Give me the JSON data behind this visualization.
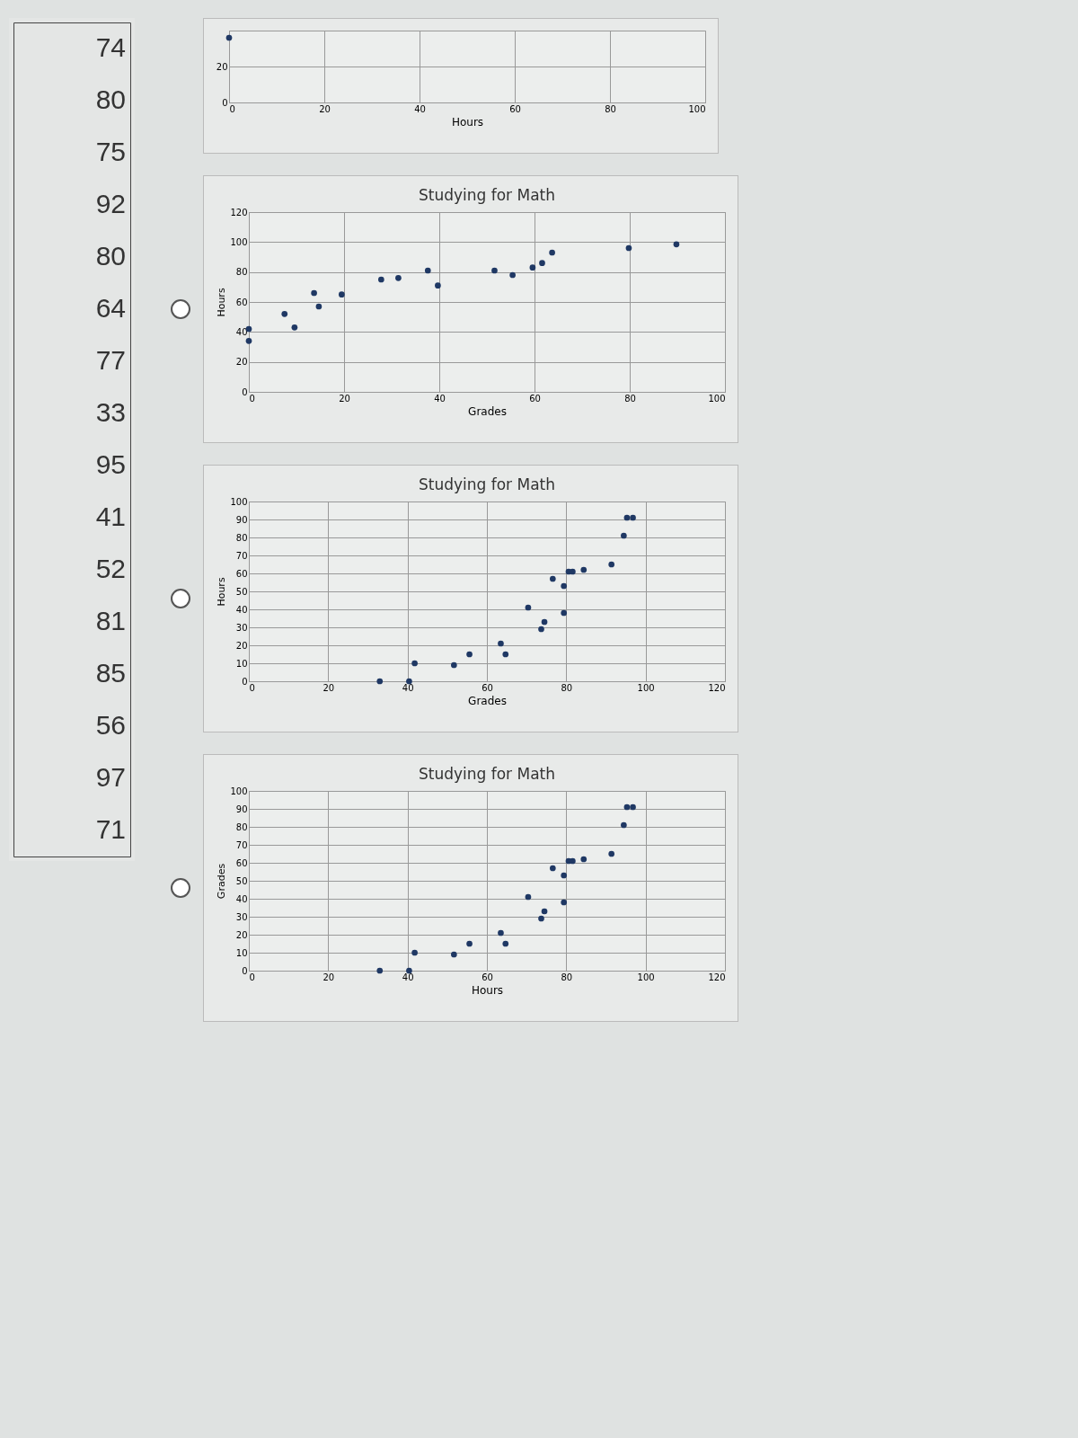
{
  "chart_data": [
    {
      "type": "other",
      "annotations": [
        "74",
        "80",
        "75",
        "92",
        "80",
        "64",
        "77",
        "33",
        "95",
        "41",
        "52",
        "81",
        "85",
        "56",
        "97",
        "71"
      ]
    },
    {
      "type": "scatter",
      "xlabel": "Hours",
      "x": [
        0
      ],
      "values": [
        36
      ],
      "color": "#1f3864",
      "marker": "circle",
      "xlim": [
        0,
        100
      ],
      "xticks": [
        0,
        20,
        40,
        60,
        80,
        100
      ],
      "ylim": [
        0,
        40
      ],
      "yticks": [
        0,
        20
      ],
      "grid": true
    },
    {
      "type": "scatter",
      "title": "Studying for Math",
      "xlabel": "Grades",
      "ylabel": "Hours",
      "x": [
        0,
        0,
        7.5,
        9.6,
        13.7,
        14.7,
        19.5,
        27.8,
        31.4,
        37.6,
        39.7,
        51.6,
        55.4,
        59.6,
        61.6,
        63.7,
        79.8,
        89.8
      ],
      "values": [
        42,
        34,
        52,
        43,
        66,
        57,
        65,
        75,
        76,
        81,
        71,
        81,
        78,
        83,
        86,
        93,
        96,
        98.5
      ],
      "color": "#1f3864",
      "marker": "circle",
      "xlim": [
        0,
        100
      ],
      "xticks": [
        0,
        20,
        40,
        60,
        80,
        100
      ],
      "ylim": [
        0,
        120
      ],
      "yticks": [
        0,
        20,
        40,
        60,
        80,
        100,
        120
      ],
      "grid": true
    },
    {
      "type": "scatter",
      "title": "Studying for Math",
      "xlabel": "Grades",
      "ylabel": "Hours",
      "x": [
        33,
        40.4,
        41.8,
        51.7,
        55.6,
        63.5,
        64.7,
        70.4,
        73.7,
        74.5,
        76.6,
        79.4,
        79.4,
        80.6,
        81.6,
        84.4,
        91.4,
        94.5,
        95.3,
        96.8
      ],
      "values": [
        0,
        0,
        10,
        9,
        15,
        21,
        15,
        41,
        29,
        33,
        57,
        53,
        38,
        61,
        61,
        62,
        65,
        81,
        91,
        91
      ],
      "color": "#1f3864",
      "marker": "circle",
      "xlim": [
        0,
        120
      ],
      "xticks": [
        0,
        20,
        40,
        60,
        80,
        100,
        120
      ],
      "ylim": [
        0,
        100
      ],
      "yticks": [
        0,
        10,
        20,
        30,
        40,
        50,
        60,
        70,
        80,
        90,
        100
      ],
      "grid": true
    },
    {
      "type": "scatter",
      "title": "Studying for Math",
      "xlabel": "Hours",
      "ylabel": "Grades",
      "x": [
        33,
        40.4,
        41.8,
        51.7,
        55.6,
        63.5,
        64.7,
        70.4,
        73.7,
        74.5,
        76.6,
        79.4,
        79.4,
        80.6,
        81.6,
        84.4,
        91.4,
        94.5,
        95.3,
        96.8
      ],
      "values": [
        0,
        0,
        10,
        9,
        15,
        21,
        15,
        41,
        29,
        33,
        57,
        53,
        38,
        61,
        61,
        62,
        65,
        81,
        91,
        91
      ],
      "color": "#1f3864",
      "marker": "circle",
      "xlim": [
        0,
        120
      ],
      "xticks": [
        0,
        20,
        40,
        60,
        80,
        100,
        120
      ],
      "ylim": [
        0,
        100
      ],
      "yticks": [
        0,
        10,
        20,
        30,
        40,
        50,
        60,
        70,
        80,
        90,
        100
      ],
      "grid": true
    }
  ]
}
